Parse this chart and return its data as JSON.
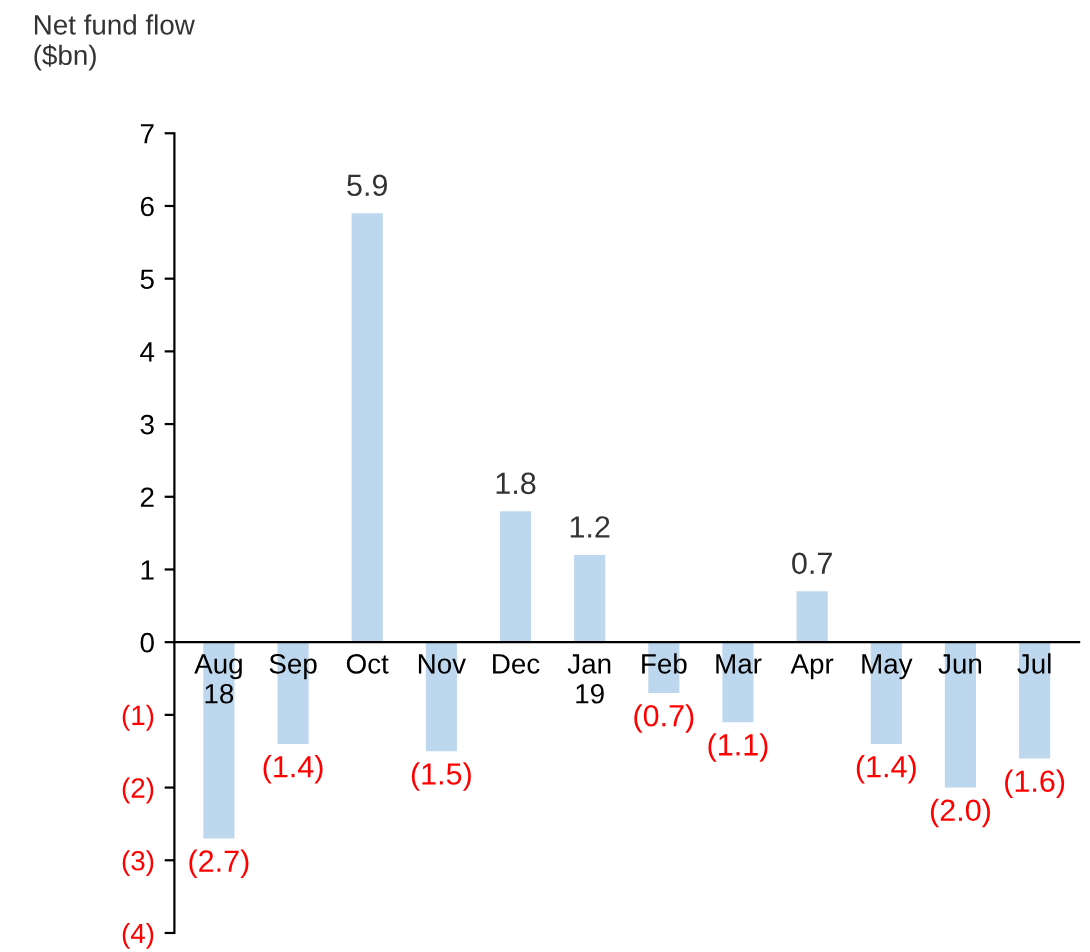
{
  "chart_data": {
    "type": "bar",
    "ylabel": "Net fund flow\n($bn)",
    "categories": [
      "Aug\n18",
      "Sep",
      "Oct",
      "Nov",
      "Dec",
      "Jan\n19",
      "Feb",
      "Mar",
      "Apr",
      "May",
      "Jun",
      "Jul"
    ],
    "values": [
      -2.7,
      -1.4,
      5.9,
      -1.5,
      1.8,
      1.2,
      -0.7,
      -1.1,
      0.7,
      -1.4,
      -2.0,
      -1.6
    ],
    "value_labels": [
      "(2.7)",
      "(1.4)",
      "5.9",
      "(1.5)",
      "1.8",
      "1.2",
      "(0.7)",
      "(1.1)",
      "0.7",
      "(1.4)",
      "(2.0)",
      "(1.6)"
    ],
    "color": "#bdd7ee",
    "ylim": [
      -4,
      7
    ],
    "yticks": [
      {
        "value": -4,
        "label": "(4)"
      },
      {
        "value": -3,
        "label": "(3)"
      },
      {
        "value": -2,
        "label": "(2)"
      },
      {
        "value": -1,
        "label": "(1)"
      },
      0,
      1,
      2,
      3,
      4,
      5,
      6,
      7
    ],
    "grid": false
  }
}
